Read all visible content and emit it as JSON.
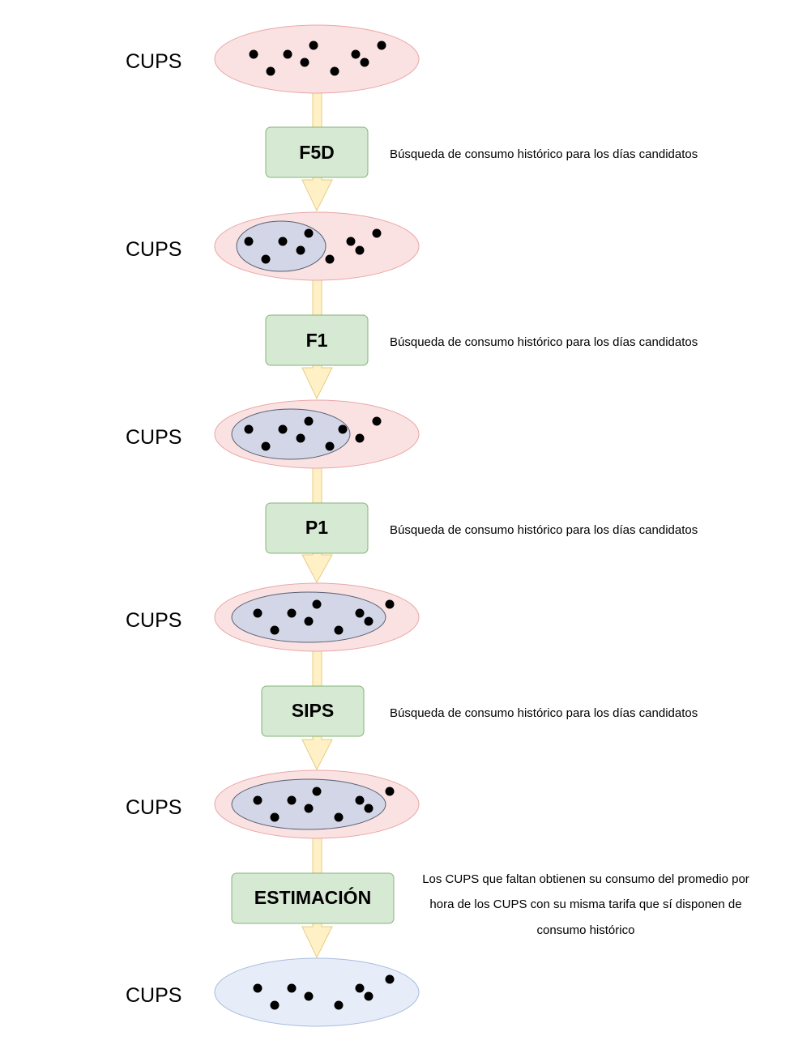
{
  "colors": {
    "set_fill": "#fbe2e2",
    "set_stroke": "#e9a6a6",
    "subset_fill": "#d3d6e6",
    "subset_stroke": "#5a5f72",
    "final_fill": "#e6ecf8",
    "final_stroke": "#a9bddd",
    "step_fill": "#d6e9d3",
    "step_stroke": "#84b578",
    "arrow_fill": "#fff0c6",
    "arrow_stroke": "#e6cd83",
    "dot": "#000000"
  },
  "sets": [
    {
      "label": "CUPS"
    },
    {
      "label": "CUPS"
    },
    {
      "label": "CUPS"
    },
    {
      "label": "CUPS"
    },
    {
      "label": "CUPS"
    },
    {
      "label": "CUPS"
    }
  ],
  "steps": [
    {
      "label": "F5D",
      "description": [
        "Búsqueda de consumo histórico para los días candidatos"
      ]
    },
    {
      "label": "F1",
      "description": [
        "Búsqueda de consumo histórico para los días candidatos"
      ]
    },
    {
      "label": "P1",
      "description": [
        "Búsqueda de consumo histórico para los días candidatos"
      ]
    },
    {
      "label": "SIPS",
      "description": [
        "Búsqueda de consumo histórico para los días candidatos"
      ]
    },
    {
      "label": "ESTIMACIÓN",
      "description": [
        "Los CUPS que faltan obtienen su consumo del promedio por",
        "hora de los CUPS con su misma tarifa que sí disponen de",
        "consumo histórico"
      ]
    }
  ]
}
